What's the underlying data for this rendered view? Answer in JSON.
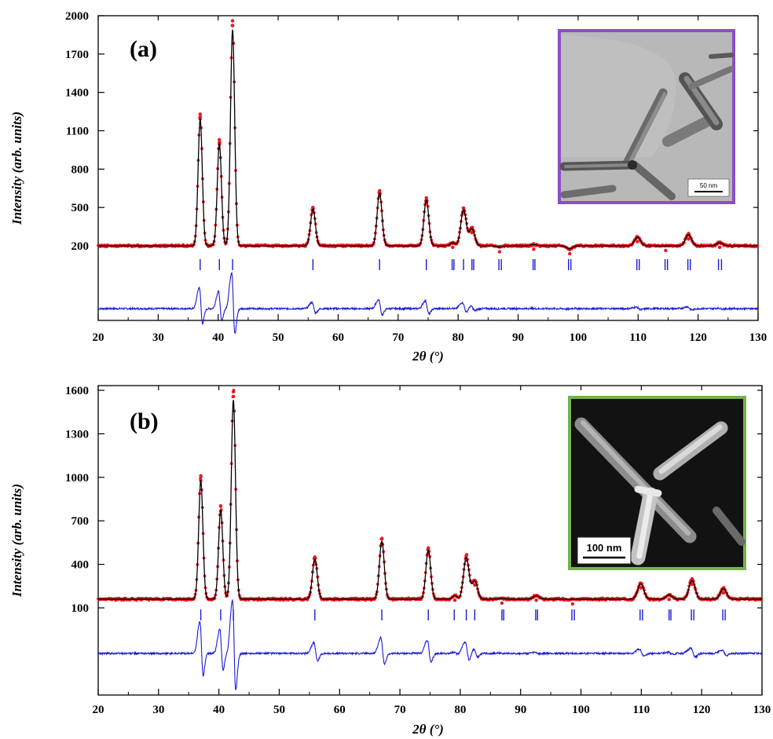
{
  "chart_data": [
    {
      "type": "scatter",
      "panel_label": "(a)",
      "title": "",
      "xlabel": "2θ (°)",
      "ylabel": "Intensity (arb. units)",
      "xlim": [
        20,
        130
      ],
      "xticks": [
        20,
        30,
        40,
        50,
        60,
        70,
        80,
        90,
        100,
        110,
        120,
        130
      ],
      "yticks": [
        200,
        500,
        800,
        1100,
        1400,
        1700,
        2000
      ],
      "baseline_intensity": 200,
      "peaks": [
        {
          "x": 37.0,
          "y": 1230,
          "width": 0.35
        },
        {
          "x": 40.2,
          "y": 1030,
          "width": 0.35
        },
        {
          "x": 42.4,
          "y": 1960,
          "width": 0.35
        },
        {
          "x": 55.8,
          "y": 500,
          "width": 0.4
        },
        {
          "x": 66.9,
          "y": 630,
          "width": 0.4
        },
        {
          "x": 74.7,
          "y": 575,
          "width": 0.4
        },
        {
          "x": 79.1,
          "y": 225,
          "width": 0.4
        },
        {
          "x": 80.9,
          "y": 495,
          "width": 0.45
        },
        {
          "x": 82.3,
          "y": 340,
          "width": 0.45
        },
        {
          "x": 86.9,
          "y": 190,
          "width": 0.45
        },
        {
          "x": 92.6,
          "y": 210,
          "width": 0.5
        },
        {
          "x": 98.6,
          "y": 175,
          "width": 0.5
        },
        {
          "x": 109.9,
          "y": 270,
          "width": 0.5
        },
        {
          "x": 114.6,
          "y": 200,
          "width": 0.5
        },
        {
          "x": 118.4,
          "y": 290,
          "width": 0.5
        },
        {
          "x": 123.6,
          "y": 225,
          "width": 0.5
        }
      ],
      "bragg_positions": [
        37.0,
        40.2,
        42.4,
        55.8,
        66.9,
        74.7,
        79.0,
        79.3,
        80.9,
        82.3,
        82.6,
        86.8,
        87.2,
        92.5,
        92.8,
        98.4,
        98.8,
        109.8,
        110.2,
        114.5,
        114.9,
        118.3,
        118.7,
        123.4,
        123.9
      ],
      "series": [
        {
          "name": "observed",
          "color": "#e8191e"
        },
        {
          "name": "calculated",
          "color": "#000000"
        },
        {
          "name": "Bragg positions",
          "color": "#1b1bd6"
        },
        {
          "name": "difference",
          "color": "#1b1bd6"
        }
      ],
      "inset": {
        "kind": "TEM micrograph",
        "frame_color": "#8b4fc7",
        "scale_bar": "50 nm"
      }
    },
    {
      "type": "scatter",
      "panel_label": "(b)",
      "title": "",
      "xlabel": "2θ (°)",
      "ylabel": "Intensity (arb. units)",
      "xlim": [
        20,
        130
      ],
      "xticks": [
        20,
        30,
        40,
        50,
        60,
        70,
        80,
        90,
        100,
        110,
        120,
        130
      ],
      "yticks": [
        100,
        400,
        700,
        1000,
        1300,
        1600
      ],
      "baseline_intensity": 160,
      "peaks": [
        {
          "x": 37.0,
          "y": 1010,
          "width": 0.35
        },
        {
          "x": 40.3,
          "y": 800,
          "width": 0.35
        },
        {
          "x": 42.4,
          "y": 1590,
          "width": 0.35
        },
        {
          "x": 55.9,
          "y": 450,
          "width": 0.4
        },
        {
          "x": 67.0,
          "y": 575,
          "width": 0.4
        },
        {
          "x": 74.7,
          "y": 510,
          "width": 0.4
        },
        {
          "x": 79.1,
          "y": 185,
          "width": 0.4
        },
        {
          "x": 81.0,
          "y": 460,
          "width": 0.45
        },
        {
          "x": 82.4,
          "y": 290,
          "width": 0.45
        },
        {
          "x": 86.9,
          "y": 165,
          "width": 0.45
        },
        {
          "x": 92.6,
          "y": 185,
          "width": 0.5
        },
        {
          "x": 98.6,
          "y": 160,
          "width": 0.5
        },
        {
          "x": 109.9,
          "y": 270,
          "width": 0.5
        },
        {
          "x": 114.6,
          "y": 190,
          "width": 0.5
        },
        {
          "x": 118.4,
          "y": 295,
          "width": 0.5
        },
        {
          "x": 123.6,
          "y": 235,
          "width": 0.5
        }
      ],
      "bragg_positions": [
        37.0,
        40.3,
        42.4,
        55.9,
        67.0,
        74.7,
        79.0,
        81.0,
        82.4,
        86.9,
        87.2,
        92.5,
        92.8,
        98.5,
        98.9,
        109.8,
        110.2,
        114.6,
        114.9,
        118.3,
        118.7,
        123.5,
        123.9
      ],
      "series": [
        {
          "name": "observed",
          "color": "#e8191e"
        },
        {
          "name": "calculated",
          "color": "#000000"
        },
        {
          "name": "Bragg positions",
          "color": "#1b1bd6"
        },
        {
          "name": "difference",
          "color": "#1b1bd6"
        }
      ],
      "inset": {
        "kind": "SEM micrograph",
        "frame_color": "#74b24e",
        "scale_bar": "100 nm"
      }
    }
  ]
}
